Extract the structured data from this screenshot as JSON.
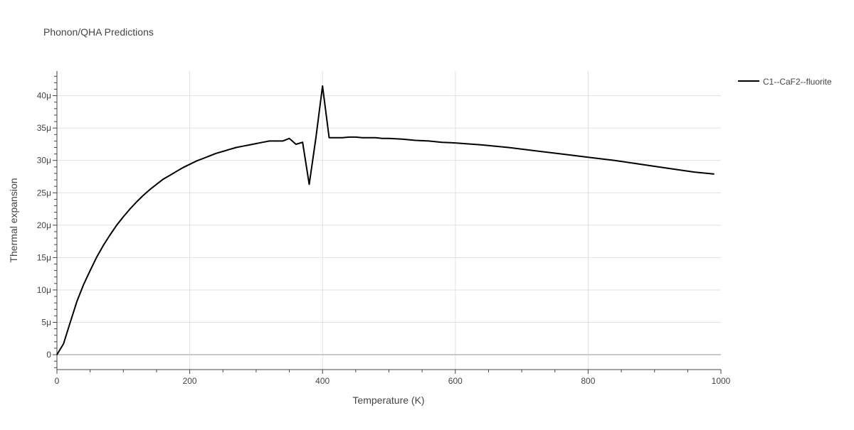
{
  "chart_data": {
    "type": "line",
    "title": "Phonon/QHA Predictions",
    "xlabel": "Temperature (K)",
    "ylabel": "Thermal expansion",
    "xlim": [
      0,
      1000
    ],
    "ylim": [
      -2.3e-06,
      4.38e-05
    ],
    "x_ticks": [
      0,
      200,
      400,
      600,
      800,
      1000
    ],
    "x_tick_labels": [
      "0",
      "200",
      "400",
      "600",
      "800",
      "1000"
    ],
    "y_ticks": [
      0,
      5e-06,
      1e-05,
      1.5e-05,
      2e-05,
      2.5e-05,
      3e-05,
      3.5e-05,
      4e-05
    ],
    "y_tick_labels": [
      "0",
      "5μ",
      "10μ",
      "15μ",
      "20μ",
      "25μ",
      "30μ",
      "35μ",
      "40μ"
    ],
    "grid": true,
    "legend_position": "top-right",
    "series": [
      {
        "name": "C1--CaF2--fluorite",
        "color": "#000000",
        "x": [
          0,
          10,
          20,
          30,
          40,
          50,
          60,
          70,
          80,
          90,
          100,
          110,
          120,
          130,
          140,
          150,
          160,
          170,
          180,
          190,
          200,
          210,
          220,
          230,
          240,
          250,
          260,
          270,
          280,
          290,
          300,
          310,
          320,
          330,
          340,
          350,
          360,
          370,
          380,
          390,
          400,
          410,
          420,
          430,
          440,
          450,
          460,
          470,
          480,
          490,
          500,
          520,
          540,
          560,
          580,
          600,
          640,
          680,
          720,
          760,
          800,
          840,
          880,
          920,
          960,
          990
        ],
        "y": [
          0,
          1.7e-06,
          5e-06,
          8.2e-06,
          1.08e-05,
          1.3e-05,
          1.51e-05,
          1.69e-05,
          1.85e-05,
          2e-05,
          2.13e-05,
          2.25e-05,
          2.36e-05,
          2.46e-05,
          2.55e-05,
          2.63e-05,
          2.71e-05,
          2.77e-05,
          2.83e-05,
          2.89e-05,
          2.94e-05,
          2.99e-05,
          3.03e-05,
          3.07e-05,
          3.11e-05,
          3.14e-05,
          3.17e-05,
          3.2e-05,
          3.22e-05,
          3.24e-05,
          3.26e-05,
          3.28e-05,
          3.3e-05,
          3.3e-05,
          3.3e-05,
          3.34e-05,
          3.25e-05,
          3.28e-05,
          2.63e-05,
          3.35e-05,
          4.15e-05,
          3.35e-05,
          3.35e-05,
          3.35e-05,
          3.36e-05,
          3.36e-05,
          3.35e-05,
          3.35e-05,
          3.35e-05,
          3.34e-05,
          3.34e-05,
          3.33e-05,
          3.31e-05,
          3.3e-05,
          3.28e-05,
          3.27e-05,
          3.24e-05,
          3.2e-05,
          3.15e-05,
          3.1e-05,
          3.05e-05,
          3e-05,
          2.94e-05,
          2.88e-05,
          2.82e-05,
          2.79e-05
        ]
      }
    ]
  }
}
